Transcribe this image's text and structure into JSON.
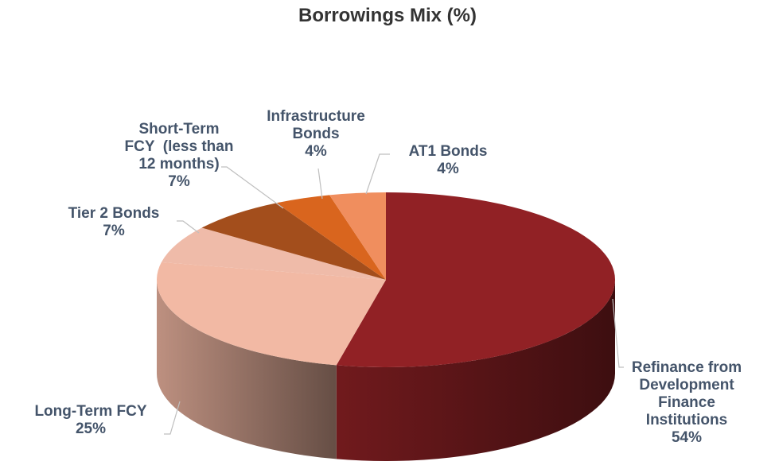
{
  "chart_data": {
    "type": "pie",
    "title": "Borrowings Mix (%)",
    "slices": [
      {
        "label": "Refinance from Development Finance Institutions",
        "label_lines": [
          "Refinance from",
          "Development",
          "Finance",
          "Institutions"
        ],
        "value": 54,
        "value_label": "54%",
        "color": "#912125"
      },
      {
        "label": "Long-Term FCY",
        "label_lines": [
          "Long-Term FCY"
        ],
        "value": 25,
        "value_label": "25%",
        "color": "#F2B9A4"
      },
      {
        "label": "Tier 2 Bonds",
        "label_lines": [
          "Tier 2 Bonds"
        ],
        "value": 7,
        "value_label": "7%",
        "color": "#EFBBA9"
      },
      {
        "label": "Short-Term FCY (less than 12 months)",
        "label_lines": [
          "Short-Term",
          "FCY  (less than",
          "12 months)"
        ],
        "value": 7,
        "value_label": "7%",
        "color": "#A34E1C"
      },
      {
        "label": "Infrastructure Bonds",
        "label_lines": [
          "Infrastructure",
          "Bonds"
        ],
        "value": 4,
        "value_label": "4%",
        "color": "#D9651E"
      },
      {
        "label": "AT1 Bonds",
        "label_lines": [
          "AT1 Bonds"
        ],
        "value": 4,
        "value_label": "4%",
        "color": "#F08E5E"
      }
    ],
    "label_color": "#44546A",
    "title_color": "#333333"
  }
}
